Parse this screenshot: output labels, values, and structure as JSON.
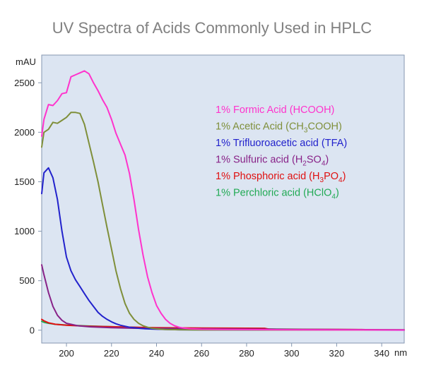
{
  "chart_data": {
    "type": "line",
    "title": "UV Spectra of Acids Commonly Used in HPLC",
    "ylabel": "mAU",
    "xlabel": "nm",
    "xlim": [
      189,
      350
    ],
    "ylim": [
      -130,
      2780
    ],
    "xticks": [
      200,
      220,
      240,
      260,
      280,
      300,
      320,
      340
    ],
    "yticks": [
      0,
      500,
      1000,
      1500,
      2000,
      2500
    ],
    "grid": false,
    "legend_position": "top-right",
    "series": [
      {
        "name": "1% Formic Acid (HCOOH)",
        "legend_parts": [
          {
            "t": "1% Formic Acid (HCOOH)"
          }
        ],
        "color": "#ff33cc",
        "x": [
          189,
          190,
          192,
          194,
          196,
          198,
          200,
          202,
          204,
          206,
          208,
          210,
          212,
          214,
          216,
          218,
          220,
          222,
          224,
          226,
          228,
          230,
          232,
          234,
          236,
          238,
          240,
          242,
          244,
          246,
          248,
          250,
          252,
          255,
          260,
          270,
          280,
          290,
          300,
          320,
          350
        ],
        "y": [
          1960,
          2130,
          2280,
          2270,
          2320,
          2390,
          2400,
          2560,
          2580,
          2600,
          2620,
          2590,
          2500,
          2420,
          2330,
          2250,
          2130,
          1990,
          1880,
          1770,
          1580,
          1320,
          1020,
          760,
          540,
          380,
          250,
          170,
          110,
          70,
          45,
          30,
          22,
          15,
          10,
          8,
          6,
          5,
          4,
          3,
          2
        ]
      },
      {
        "name": "1% Acetic Acid (CH3COOH)",
        "legend_parts": [
          {
            "t": "1% Acetic Acid (CH"
          },
          {
            "t": "3",
            "sub": true
          },
          {
            "t": "COOH)"
          }
        ],
        "color": "#7f8f3a",
        "x": [
          189,
          190,
          192,
          194,
          196,
          198,
          200,
          202,
          204,
          206,
          208,
          210,
          212,
          214,
          216,
          218,
          220,
          222,
          224,
          226,
          228,
          230,
          232,
          234,
          236,
          238,
          240,
          242,
          244,
          246,
          250,
          255,
          260,
          280,
          300,
          350
        ],
        "y": [
          1850,
          2000,
          2030,
          2100,
          2090,
          2120,
          2150,
          2200,
          2200,
          2190,
          2080,
          1890,
          1700,
          1500,
          1270,
          1040,
          820,
          600,
          420,
          270,
          170,
          110,
          70,
          45,
          30,
          20,
          14,
          10,
          8,
          6,
          5,
          4,
          3,
          3,
          2,
          2
        ]
      },
      {
        "name": "1% Trifluoroacetic acid (TFA)",
        "legend_parts": [
          {
            "t": "1% Trifluoroacetic acid (TFA)"
          }
        ],
        "color": "#2222cc",
        "x": [
          189,
          190,
          192,
          194,
          196,
          198,
          200,
          202,
          204,
          206,
          208,
          210,
          212,
          214,
          216,
          218,
          220,
          222,
          224,
          226,
          228,
          230,
          232,
          235,
          240,
          245,
          250,
          260,
          280,
          300,
          350
        ],
        "y": [
          1380,
          1590,
          1640,
          1540,
          1320,
          1000,
          740,
          600,
          510,
          440,
          370,
          300,
          240,
          180,
          140,
          110,
          85,
          65,
          50,
          40,
          30,
          25,
          20,
          15,
          10,
          7,
          5,
          4,
          3,
          2,
          1
        ]
      },
      {
        "name": "1% Sulfuric acid (H2SO4)",
        "legend_parts": [
          {
            "t": "1% Sulfuric acid (H"
          },
          {
            "t": "2",
            "sub": true
          },
          {
            "t": "SO"
          },
          {
            "t": "4",
            "sub": true
          },
          {
            "t": ")"
          }
        ],
        "color": "#882288",
        "x": [
          189,
          190,
          192,
          194,
          196,
          198,
          200,
          205,
          210,
          220,
          230,
          240,
          260,
          280,
          290,
          300,
          320,
          350
        ],
        "y": [
          660,
          560,
          380,
          240,
          150,
          100,
          70,
          45,
          35,
          25,
          20,
          18,
          14,
          12,
          10,
          8,
          6,
          4
        ]
      },
      {
        "name": "1% Phosphoric acid (H3PO4)",
        "legend_parts": [
          {
            "t": "1% Phosphoric acid (H"
          },
          {
            "t": "3",
            "sub": true
          },
          {
            "t": "PO"
          },
          {
            "t": "4",
            "sub": true
          },
          {
            "t": ")"
          }
        ],
        "color": "#e01010",
        "x": [
          189,
          190,
          192,
          195,
          200,
          210,
          220,
          230,
          240,
          260,
          280,
          288,
          290,
          300,
          320,
          331,
          340,
          350
        ],
        "y": [
          110,
          95,
          75,
          60,
          50,
          40,
          35,
          30,
          25,
          22,
          20,
          19,
          10,
          8,
          7,
          6,
          2,
          2
        ]
      },
      {
        "name": "1% Perchloric acid (HClO4)",
        "legend_parts": [
          {
            "t": "1% Perchloric acid (HClO"
          },
          {
            "t": "4",
            "sub": true
          },
          {
            "t": ")"
          }
        ],
        "color": "#22aa55",
        "x": [
          189,
          190,
          192,
          195,
          200,
          210,
          220,
          230,
          240,
          260,
          280,
          300,
          320,
          350
        ],
        "y": [
          90,
          80,
          70,
          60,
          52,
          42,
          35,
          28,
          22,
          18,
          14,
          10,
          6,
          4
        ]
      }
    ]
  }
}
